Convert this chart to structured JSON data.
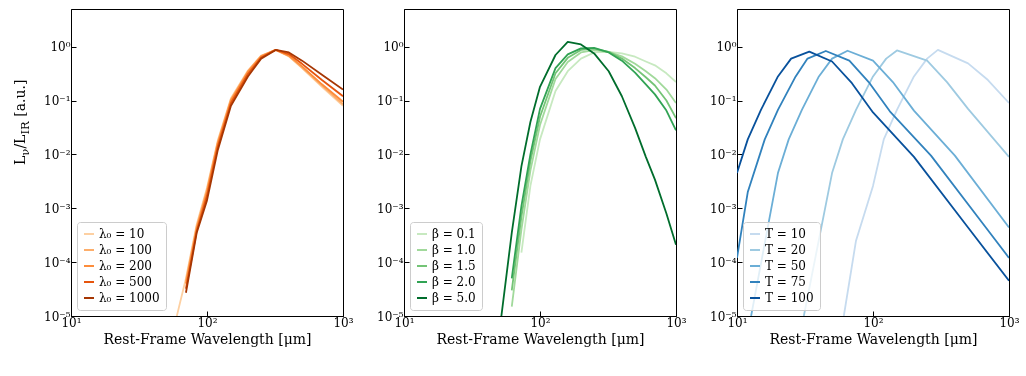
{
  "chart_data": [
    {
      "type": "line",
      "xlabel": "Rest-Frame Wavelength [μm]",
      "ylabel": "L$_{ν}$/L$_{IR}$ [a.u.]",
      "log": "xy",
      "legend": "bottom left",
      "xlim": [
        10,
        1000
      ],
      "ylim": [
        1e-05,
        5
      ],
      "xticks": [
        {
          "value": 10,
          "label": "10¹"
        },
        {
          "value": 100,
          "label": "10²"
        },
        {
          "value": 1000,
          "label": "10³"
        }
      ],
      "yticks": [
        {
          "value": 1e-05,
          "label": "10⁻⁵"
        },
        {
          "value": 0.0001,
          "label": "10⁻⁴"
        },
        {
          "value": 0.001,
          "label": "10⁻³"
        },
        {
          "value": 0.01,
          "label": "10⁻²"
        },
        {
          "value": 0.1,
          "label": "10⁻¹"
        },
        {
          "value": 1,
          "label": "10⁰"
        }
      ],
      "x": [
        60,
        70,
        84,
        100,
        120,
        150,
        200,
        250,
        320,
        400,
        500,
        700,
        1000
      ],
      "series": [
        {
          "name": "λ₀ = 10",
          "color": "#fdd0a2",
          "values": [
            1e-05,
            5e-05,
            0.0005,
            0.0024,
            0.018,
            0.11,
            0.36,
            0.68,
            0.87,
            0.66,
            0.4,
            0.18,
            0.08
          ]
        },
        {
          "name": "λ₀ = 100",
          "color": "#fdae6b",
          "values": [
            null,
            4.5e-05,
            0.00046,
            0.0022,
            0.017,
            0.105,
            0.35,
            0.67,
            0.87,
            0.67,
            0.41,
            0.19,
            0.085
          ]
        },
        {
          "name": "λ₀ = 200",
          "color": "#fd8d3c",
          "values": [
            null,
            4e-05,
            0.00042,
            0.002,
            0.016,
            0.1,
            0.34,
            0.66,
            0.87,
            0.68,
            0.43,
            0.2,
            0.095
          ]
        },
        {
          "name": "λ₀ = 500",
          "color": "#e6550d",
          "values": [
            null,
            3.2e-05,
            0.00038,
            0.0017,
            0.014,
            0.09,
            0.31,
            0.63,
            0.87,
            0.73,
            0.48,
            0.24,
            0.12
          ]
        },
        {
          "name": "λ₀ = 1000",
          "color": "#a63603",
          "values": [
            null,
            2.7e-05,
            0.00035,
            0.0014,
            0.012,
            0.08,
            0.28,
            0.6,
            0.87,
            0.78,
            0.55,
            0.3,
            0.16
          ]
        }
      ]
    },
    {
      "type": "line",
      "xlabel": "Rest-Frame Wavelength [μm]",
      "log": "xy",
      "legend": "bottom left",
      "xlim": [
        10,
        1000
      ],
      "ylim": [
        1e-05,
        5
      ],
      "xticks": [
        {
          "value": 10,
          "label": "10¹"
        },
        {
          "value": 100,
          "label": "10²"
        },
        {
          "value": 1000,
          "label": "10³"
        }
      ],
      "yticks": [
        {
          "value": 1e-05,
          "label": "10⁻⁵"
        },
        {
          "value": 0.0001,
          "label": "10⁻⁴"
        },
        {
          "value": 0.001,
          "label": "10⁻³"
        },
        {
          "value": 0.01,
          "label": "10⁻²"
        },
        {
          "value": 0.1,
          "label": "10⁻¹"
        },
        {
          "value": 1,
          "label": "10⁰"
        }
      ],
      "x": [
        52,
        62,
        73,
        85,
        100,
        130,
        160,
        200,
        250,
        320,
        400,
        500,
        600,
        700,
        850,
        1000
      ],
      "series": [
        {
          "name": "β = 0.1",
          "color": "#c7e9c0",
          "values": [
            null,
            null,
            0.00015,
            0.0026,
            0.019,
            0.15,
            0.35,
            0.6,
            0.78,
            0.8,
            0.75,
            0.65,
            0.53,
            0.45,
            0.32,
            0.22
          ]
        },
        {
          "name": "β = 1.0",
          "color": "#a1d99b",
          "values": [
            null,
            1.5e-05,
            0.0004,
            0.005,
            0.035,
            0.25,
            0.52,
            0.78,
            0.86,
            0.8,
            0.66,
            0.48,
            0.35,
            0.26,
            0.16,
            0.09
          ]
        },
        {
          "name": "β = 1.5",
          "color": "#74c476",
          "values": [
            null,
            3e-05,
            0.0007,
            0.0075,
            0.05,
            0.32,
            0.62,
            0.87,
            0.92,
            0.8,
            0.6,
            0.4,
            0.27,
            0.19,
            0.1,
            0.047
          ]
        },
        {
          "name": "β = 2.0",
          "color": "#31a354",
          "values": [
            null,
            5e-05,
            0.0011,
            0.01,
            0.07,
            0.4,
            0.72,
            0.93,
            0.95,
            0.78,
            0.55,
            0.33,
            0.2,
            0.13,
            0.065,
            0.028
          ]
        },
        {
          "name": "β = 5.0",
          "color": "#006d2c",
          "values": [
            1e-05,
            0.00035,
            0.006,
            0.04,
            0.18,
            0.7,
            1.23,
            1.1,
            0.75,
            0.35,
            0.12,
            0.031,
            0.009,
            0.0034,
            0.0008,
            0.00021
          ]
        }
      ]
    },
    {
      "type": "line",
      "xlabel": "Rest-Frame Wavelength [μm]",
      "log": "xy",
      "legend": "bottom left",
      "xlim": [
        10,
        1000
      ],
      "ylim": [
        1e-05,
        5
      ],
      "xticks": [
        {
          "value": 10,
          "label": "10¹"
        },
        {
          "value": 100,
          "label": "10²"
        },
        {
          "value": 1000,
          "label": "10³"
        }
      ],
      "yticks": [
        {
          "value": 1e-05,
          "label": "10⁻⁵"
        },
        {
          "value": 0.0001,
          "label": "10⁻⁴"
        },
        {
          "value": 0.001,
          "label": "10⁻³"
        },
        {
          "value": 0.01,
          "label": "10⁻²"
        },
        {
          "value": 0.1,
          "label": "10⁻¹"
        },
        {
          "value": 1,
          "label": "10⁰"
        }
      ],
      "series": [
        {
          "name": "T = 10",
          "color": "#c6dbef",
          "x": [
            61,
            75,
            100,
            120,
            150,
            200,
            250,
            300,
            500,
            700,
            1000
          ],
          "values": [
            1e-05,
            0.00025,
            0.0026,
            0.019,
            0.067,
            0.28,
            0.6,
            0.87,
            0.49,
            0.24,
            0.09
          ]
        },
        {
          "name": "T = 20",
          "color": "#9ecae1",
          "x": [
            31,
            50,
            60,
            75,
            100,
            125,
            150,
            250,
            350,
            500,
            1000
          ],
          "values": [
            1e-05,
            0.0045,
            0.019,
            0.067,
            0.28,
            0.6,
            0.85,
            0.55,
            0.22,
            0.07,
            0.009
          ]
        },
        {
          "name": "T = 50",
          "color": "#6baed6",
          "x": [
            12.7,
            20,
            24,
            30,
            40,
            50,
            65,
            100,
            140,
            200,
            400,
            1000
          ],
          "values": [
            1e-05,
            0.0045,
            0.019,
            0.067,
            0.28,
            0.6,
            0.84,
            0.55,
            0.22,
            0.065,
            0.0095,
            0.00044
          ]
        },
        {
          "name": "T = 75",
          "color": "#3182bd",
          "x": [
            10,
            12,
            16,
            20,
            27,
            33,
            45,
            67,
            93,
            133,
            267,
            667,
            1000
          ],
          "values": [
            0.00012,
            0.002,
            0.019,
            0.067,
            0.28,
            0.6,
            0.83,
            0.55,
            0.22,
            0.063,
            0.0095,
            0.00046,
            0.00012
          ]
        },
        {
          "name": "T = 100",
          "color": "#08519c",
          "x": [
            10,
            12,
            15,
            20,
            25,
            34,
            50,
            70,
            100,
            200,
            500,
            1000
          ],
          "values": [
            0.0045,
            0.019,
            0.067,
            0.28,
            0.6,
            0.81,
            0.53,
            0.21,
            0.06,
            0.009,
            0.00044,
            4.5e-05
          ]
        }
      ]
    }
  ]
}
